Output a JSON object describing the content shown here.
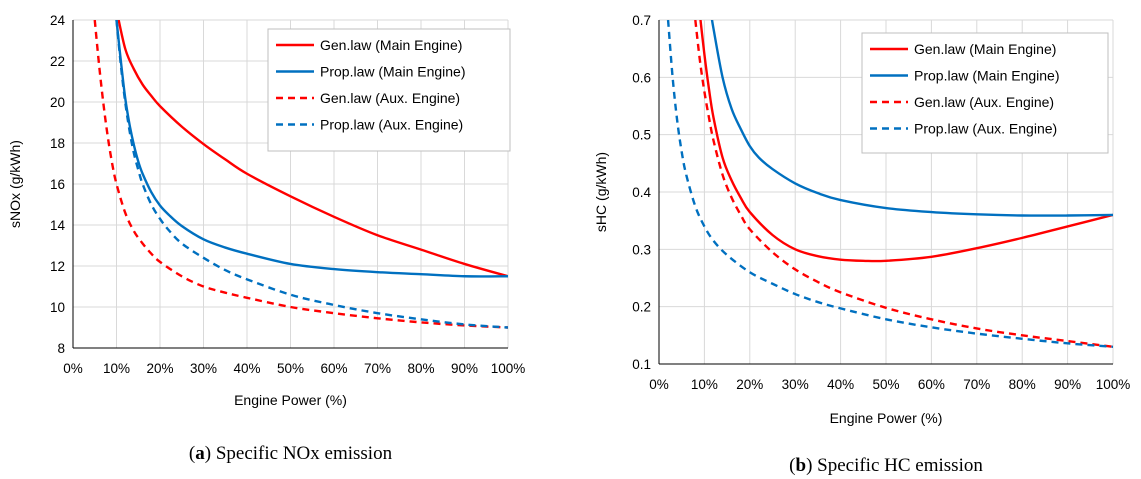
{
  "chart_data": [
    {
      "type": "line",
      "caption_letter": "a",
      "caption_text": "Specific NOx emission",
      "xlabel": "Engine Power (%)",
      "ylabel": "sNOx (g/kWh)",
      "xlim": [
        0,
        100
      ],
      "ylim": [
        8,
        24
      ],
      "xticks": [
        "0%",
        "10%",
        "20%",
        "30%",
        "40%",
        "50%",
        "60%",
        "70%",
        "80%",
        "90%",
        "100%"
      ],
      "yticks": [
        "8",
        "10",
        "12",
        "14",
        "16",
        "18",
        "20",
        "22",
        "24"
      ],
      "grid": true,
      "legend_position": "top-right",
      "series": [
        {
          "name": "Gen.law (Main Engine)",
          "color": "#ff0000",
          "dash": "solid",
          "x": [
            10,
            12,
            14,
            16,
            18,
            20,
            25,
            30,
            35,
            40,
            50,
            60,
            70,
            80,
            90,
            100
          ],
          "y": [
            24.5,
            22.6,
            21.6,
            20.85,
            20.3,
            19.8,
            18.8,
            17.95,
            17.2,
            16.5,
            15.4,
            14.4,
            13.5,
            12.8,
            12.1,
            11.5
          ]
        },
        {
          "name": "Prop.law (Main Engine)",
          "color": "#0070c0",
          "dash": "solid",
          "x": [
            10,
            11,
            12,
            13,
            14,
            15,
            16,
            18,
            20,
            22,
            25,
            30,
            35,
            40,
            50,
            60,
            70,
            80,
            90,
            100
          ],
          "y": [
            24,
            22,
            20.2,
            18.9,
            17.9,
            17.1,
            16.5,
            15.6,
            14.95,
            14.5,
            13.95,
            13.3,
            12.9,
            12.6,
            12.1,
            11.85,
            11.7,
            11.6,
            11.5,
            11.5
          ]
        },
        {
          "name": "Gen.law (Aux. Engine)",
          "color": "#ff0000",
          "dash": "dashed",
          "x": [
            5,
            6,
            7,
            8,
            9,
            10,
            12,
            14,
            16,
            18,
            20,
            25,
            30,
            35,
            40,
            50,
            60,
            70,
            80,
            90,
            100
          ],
          "y": [
            24,
            21.8,
            19.9,
            18.3,
            17.0,
            16.0,
            14.6,
            13.7,
            13.1,
            12.6,
            12.2,
            11.5,
            11.0,
            10.7,
            10.45,
            10.0,
            9.7,
            9.45,
            9.25,
            9.1,
            9.0
          ]
        },
        {
          "name": "Prop.law (Aux. Engine)",
          "color": "#0070c0",
          "dash": "dashed",
          "x": [
            10,
            11,
            12,
            13,
            14,
            15,
            16,
            18,
            20,
            22,
            25,
            30,
            35,
            40,
            50,
            60,
            70,
            80,
            90,
            100
          ],
          "y": [
            24,
            21.8,
            20.0,
            18.6,
            17.5,
            16.7,
            16.0,
            15.0,
            14.3,
            13.75,
            13.1,
            12.4,
            11.8,
            11.35,
            10.6,
            10.1,
            9.7,
            9.4,
            9.15,
            9.0
          ]
        }
      ]
    },
    {
      "type": "line",
      "caption_letter": "b",
      "caption_text": "Specific HC emission",
      "xlabel": "Engine Power (%)",
      "ylabel": "sHC (g/kWh)",
      "xlim": [
        0,
        100
      ],
      "ylim": [
        0.1,
        0.7
      ],
      "xticks": [
        "0%",
        "10%",
        "20%",
        "30%",
        "40%",
        "50%",
        "60%",
        "70%",
        "80%",
        "90%",
        "100%"
      ],
      "yticks": [
        "0.1",
        "0.2",
        "0.3",
        "0.4",
        "0.5",
        "0.6",
        "0.7"
      ],
      "grid": true,
      "legend_position": "top-right",
      "series": [
        {
          "name": "Gen.law (Main Engine)",
          "color": "#ff0000",
          "dash": "solid",
          "x": [
            9,
            10,
            11,
            12,
            14,
            16,
            18,
            20,
            25,
            30,
            35,
            40,
            45,
            50,
            60,
            70,
            80,
            90,
            100
          ],
          "y": [
            0.71,
            0.64,
            0.58,
            0.53,
            0.46,
            0.42,
            0.39,
            0.365,
            0.325,
            0.3,
            0.288,
            0.282,
            0.28,
            0.28,
            0.287,
            0.302,
            0.32,
            0.34,
            0.36
          ]
        },
        {
          "name": "Prop.law (Main Engine)",
          "color": "#0070c0",
          "dash": "solid",
          "x": [
            11.5,
            12,
            14,
            16,
            18,
            20,
            22,
            25,
            30,
            35,
            40,
            50,
            60,
            70,
            80,
            90,
            100
          ],
          "y": [
            0.71,
            0.685,
            0.6,
            0.545,
            0.51,
            0.48,
            0.46,
            0.44,
            0.415,
            0.398,
            0.386,
            0.372,
            0.365,
            0.361,
            0.359,
            0.359,
            0.36
          ]
        },
        {
          "name": "Gen.law (Aux. Engine)",
          "color": "#ff0000",
          "dash": "dashed",
          "x": [
            8,
            9,
            10,
            11,
            12,
            14,
            16,
            18,
            20,
            25,
            30,
            35,
            40,
            50,
            60,
            70,
            80,
            90,
            100
          ],
          "y": [
            0.7,
            0.63,
            0.575,
            0.53,
            0.49,
            0.43,
            0.39,
            0.36,
            0.335,
            0.295,
            0.265,
            0.243,
            0.225,
            0.198,
            0.178,
            0.162,
            0.15,
            0.14,
            0.13
          ]
        },
        {
          "name": "Prop.law (Aux. Engine)",
          "color": "#0070c0",
          "dash": "dashed",
          "x": [
            2,
            3,
            4,
            5,
            6,
            8,
            10,
            12,
            15,
            20,
            25,
            30,
            35,
            40,
            50,
            60,
            70,
            80,
            90,
            100
          ],
          "y": [
            0.7,
            0.6,
            0.525,
            0.47,
            0.43,
            0.375,
            0.34,
            0.315,
            0.29,
            0.26,
            0.24,
            0.222,
            0.208,
            0.197,
            0.178,
            0.164,
            0.153,
            0.144,
            0.136,
            0.13
          ]
        }
      ]
    }
  ]
}
